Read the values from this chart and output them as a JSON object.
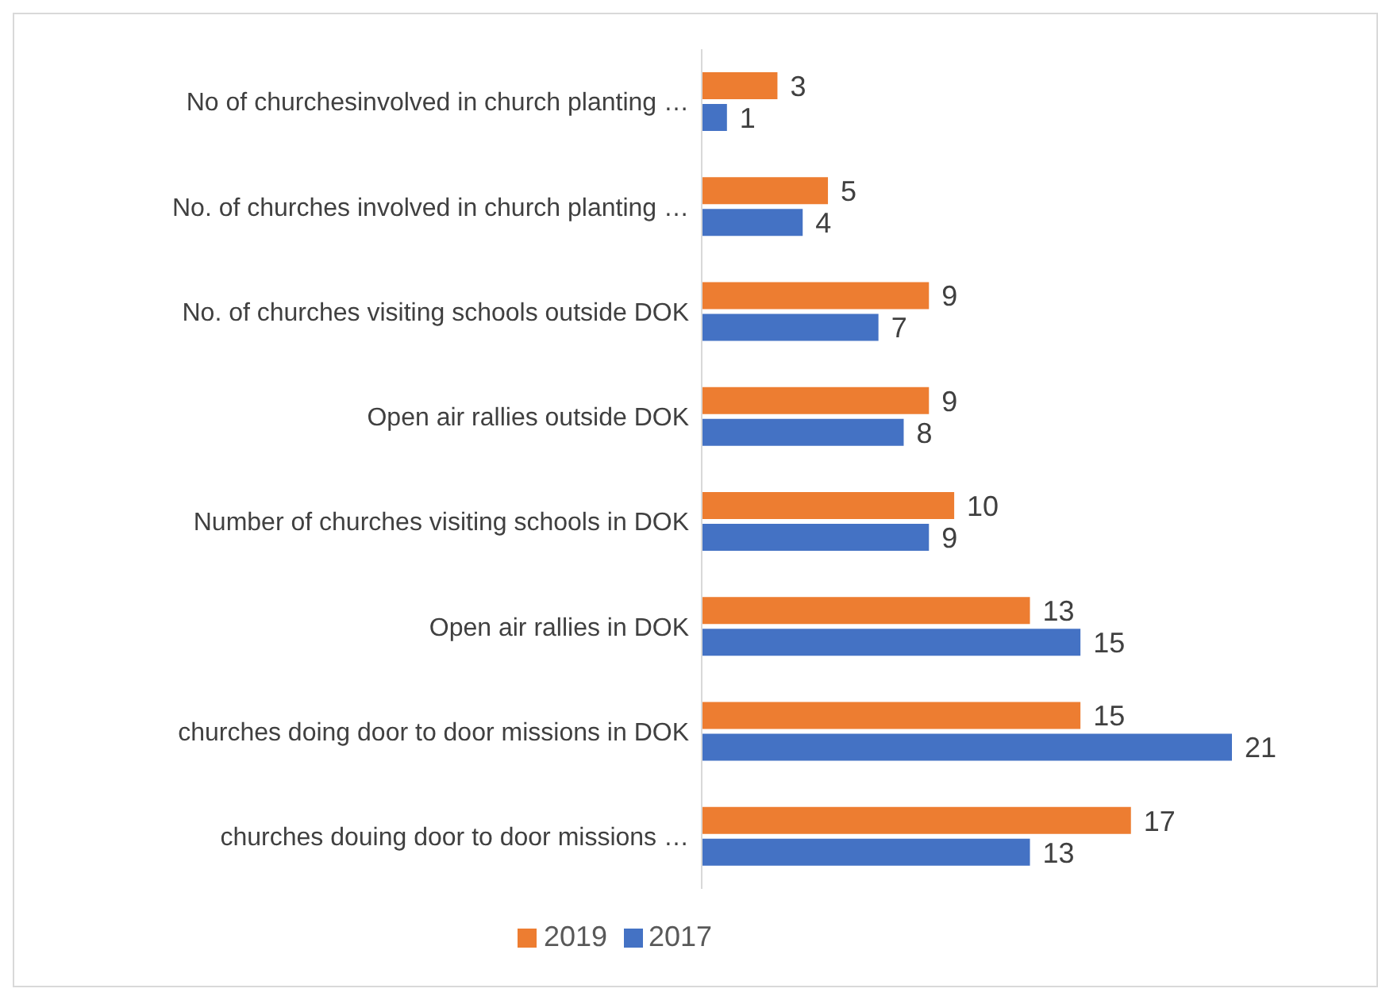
{
  "chart_data": {
    "type": "bar",
    "orientation": "horizontal",
    "categories": [
      "No of churchesinvolved in church planting …",
      "No. of churches involved in church planting …",
      "No. of churches visiting schools outside DOK",
      "Open air rallies outside DOK",
      "Number of churches visiting schools in DOK",
      "Open air rallies in DOK",
      "churches doing door to door missions in DOK",
      "churches douing door to door missions …"
    ],
    "series": [
      {
        "name": "2019",
        "color": "#ed7d31",
        "values": [
          3,
          5,
          9,
          9,
          10,
          13,
          15,
          17
        ]
      },
      {
        "name": "2017",
        "color": "#4472c4",
        "values": [
          1,
          4,
          7,
          8,
          9,
          15,
          21,
          13
        ]
      }
    ],
    "tick_labels": "y",
    "data_labels": true,
    "legend": "bottom",
    "grid": false
  }
}
